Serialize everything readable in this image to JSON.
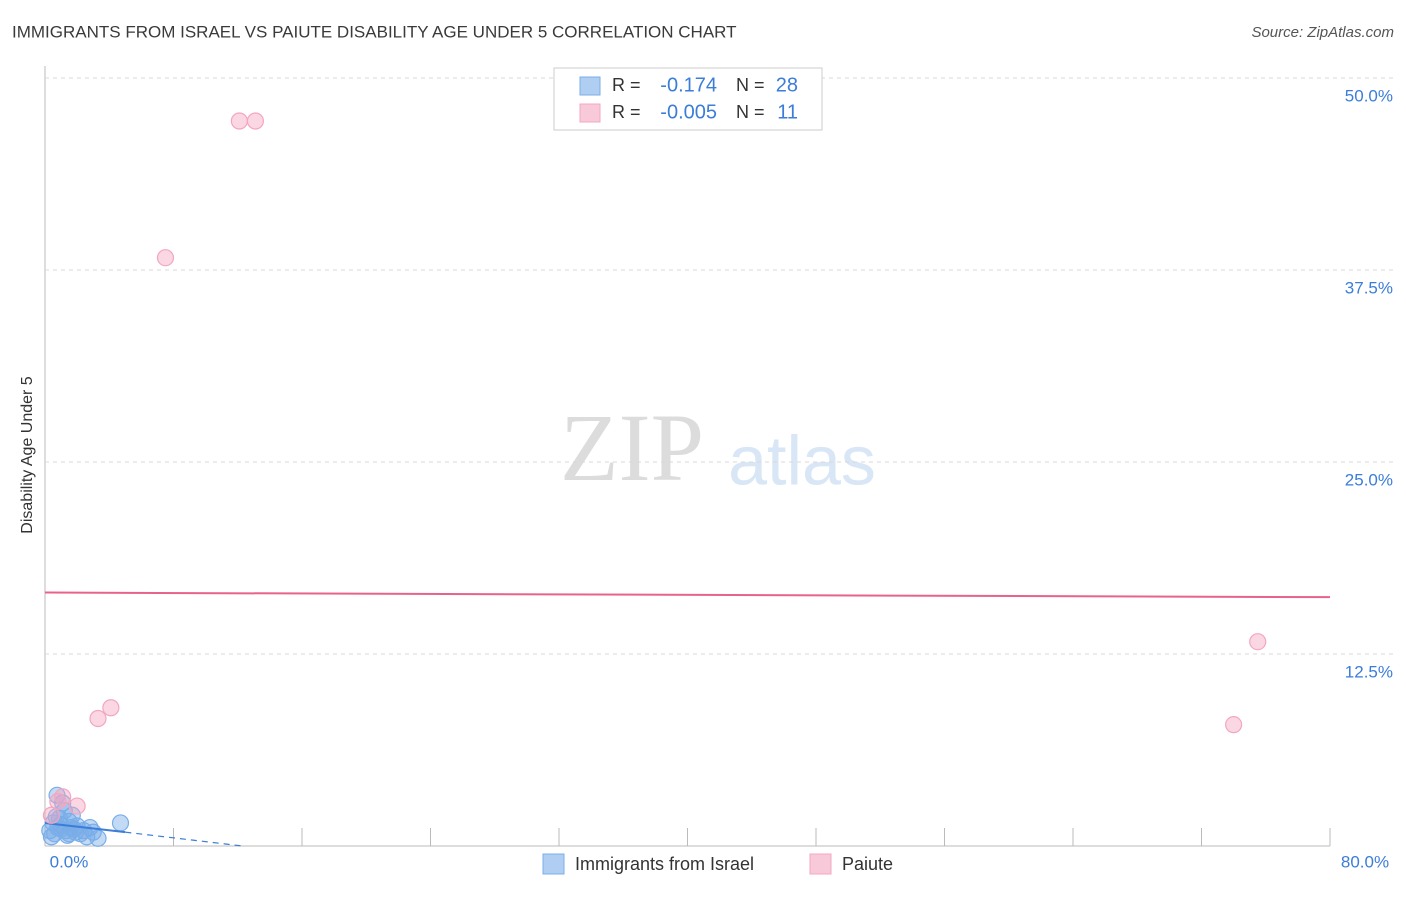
{
  "chart_data": {
    "type": "scatter",
    "title": "IMMIGRANTS FROM ISRAEL VS PAIUTE DISABILITY AGE UNDER 5 CORRELATION CHART",
    "source": "Source: ZipAtlas.com",
    "y_label": "Disability Age Under 5",
    "watermark": [
      "ZIP",
      "atlas"
    ],
    "xlim": [
      0,
      80
    ],
    "ylim": [
      0,
      50
    ],
    "xticks": [
      {
        "value": 0,
        "label": "0.0%"
      },
      {
        "value": 8,
        "label": null
      },
      {
        "value": 16,
        "label": null
      },
      {
        "value": 24,
        "label": null
      },
      {
        "value": 32,
        "label": null
      },
      {
        "value": 40,
        "label": null
      },
      {
        "value": 48,
        "label": null
      },
      {
        "value": 56,
        "label": null
      },
      {
        "value": 64,
        "label": null
      },
      {
        "value": 72,
        "label": null
      },
      {
        "value": 80,
        "label": "80.0%"
      }
    ],
    "yticks": [
      {
        "value": 12.5,
        "label": "12.5%"
      },
      {
        "value": 25,
        "label": "25.0%"
      },
      {
        "value": 37.5,
        "label": "37.5%"
      },
      {
        "value": 50,
        "label": "50.0%"
      }
    ],
    "grid": true,
    "series": [
      {
        "name": "Immigrants from Israel",
        "color": "#7aaee8",
        "line_color": "#3b7dd8",
        "r_label": "R =",
        "r_value": "-0.174",
        "n_label": "N =",
        "n_value": "28",
        "trend": [
          1.5,
          0.9
        ],
        "trend_x": [
          0,
          5
        ],
        "trend_dash_end": [
          12.3,
          0
        ],
        "x": [
          0.3,
          0.5,
          0.6,
          0.75,
          0.8,
          0.9,
          1.0,
          1.1,
          1.2,
          1.3,
          1.4,
          1.5,
          1.6,
          1.7,
          1.8,
          1.9,
          2.0,
          2.2,
          2.4,
          2.6,
          2.8,
          3.0,
          3.3,
          0.4,
          0.7,
          1.0,
          4.7,
          1.5
        ],
        "values": [
          1.0,
          1.5,
          0.8,
          3.3,
          1.2,
          1.8,
          1.4,
          2.8,
          2.3,
          1.0,
          0.7,
          1.6,
          1.2,
          2.0,
          1.1,
          0.9,
          1.3,
          0.8,
          1.0,
          0.6,
          1.2,
          0.9,
          0.5,
          0.6,
          1.9,
          1.1,
          1.5,
          0.8
        ]
      },
      {
        "name": "Paiute",
        "color": "#f4a6c0",
        "line_color": "#e8638c",
        "r_label": "R =",
        "r_value": "-0.005",
        "n_label": "N =",
        "n_value": "11",
        "trend": [
          16.5,
          16.2
        ],
        "trend_x": [
          0,
          80
        ],
        "x": [
          12.1,
          13.1,
          7.5,
          3.3,
          4.1,
          75.5,
          74.0,
          1.1,
          2.0,
          0.8,
          0.4
        ],
        "values": [
          47.2,
          47.2,
          38.3,
          8.3,
          9.0,
          13.3,
          7.9,
          3.2,
          2.6,
          2.9,
          2.0
        ]
      }
    ]
  }
}
